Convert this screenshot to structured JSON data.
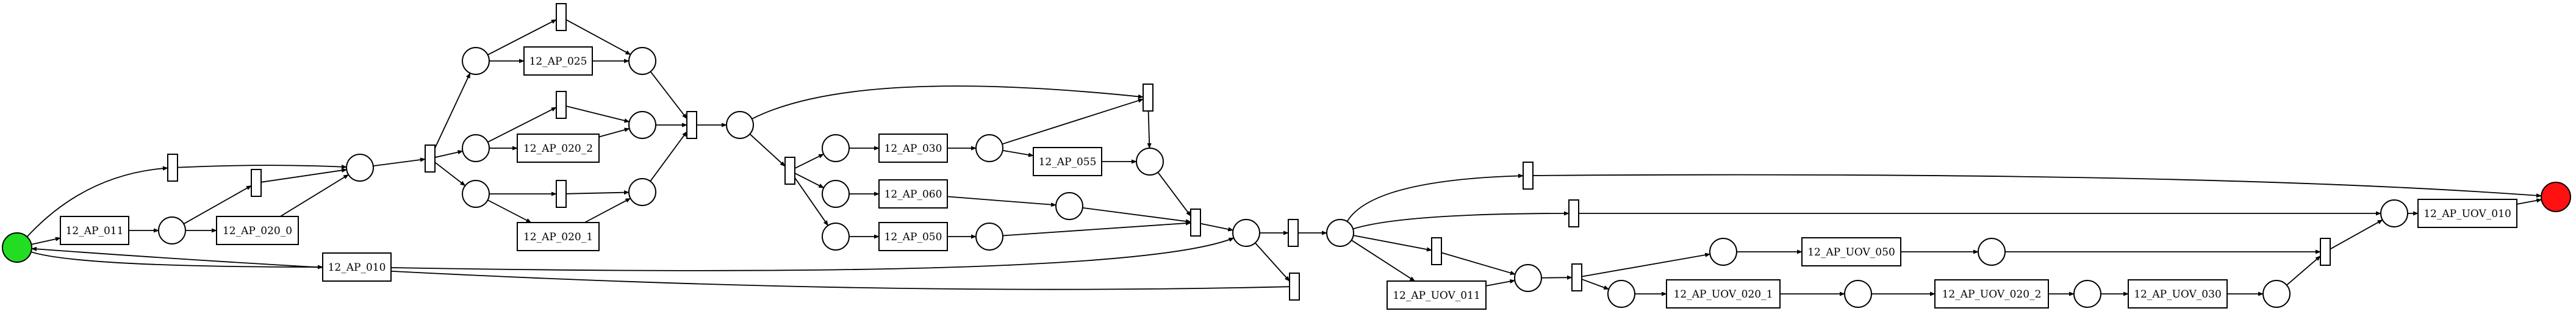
{
  "colors": {
    "start_place": "#22dd22",
    "end_place": "#ff1111",
    "stroke": "#000000",
    "background": "#ffffff"
  },
  "transitions": {
    "t_12_AP_011": "12_AP_011",
    "t_12_AP_020_0": "12_AP_020_0",
    "t_12_AP_010": "12_AP_010",
    "t_12_AP_025": "12_AP_025",
    "t_12_AP_020_2": "12_AP_020_2",
    "t_12_AP_020_1": "12_AP_020_1",
    "t_12_AP_030": "12_AP_030",
    "t_12_AP_055": "12_AP_055",
    "t_12_AP_060": "12_AP_060",
    "t_12_AP_050": "12_AP_050",
    "t_12_AP_UOV_011": "12_AP_UOV_011",
    "t_12_AP_UOV_050": "12_AP_UOV_050",
    "t_12_AP_UOV_020_1": "12_AP_UOV_020_1",
    "t_12_AP_UOV_020_2": "12_AP_UOV_020_2",
    "t_12_AP_UOV_030": "12_AP_UOV_030",
    "t_12_AP_UOV_010": "12_AP_UOV_010"
  }
}
